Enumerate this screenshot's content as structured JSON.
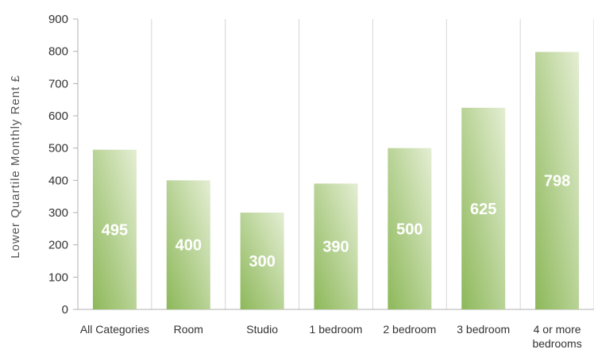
{
  "chart_data": {
    "type": "bar",
    "title": "",
    "xlabel": "",
    "ylabel": "Lower Quartile Monthly Rent £",
    "ylim": [
      0,
      900
    ],
    "yticks": [
      0,
      100,
      200,
      300,
      400,
      500,
      600,
      700,
      800,
      900
    ],
    "grid": "vertical lines between categories",
    "categories": [
      [
        "All Categories"
      ],
      [
        "Room"
      ],
      [
        "Studio"
      ],
      [
        "1 bedroom"
      ],
      [
        "2 bedroom"
      ],
      [
        "3 bedroom"
      ],
      [
        "4 or more",
        "bedrooms"
      ]
    ],
    "values": [
      495,
      400,
      300,
      390,
      500,
      625,
      798
    ],
    "data_labels": [
      "495",
      "400",
      "300",
      "390",
      "500",
      "625",
      "798"
    ],
    "colors": {
      "bar_light": "#e4eed3",
      "bar_dark": "#8db85a",
      "grid": "#d6d6d6",
      "axis": "#b0b0b0"
    }
  }
}
